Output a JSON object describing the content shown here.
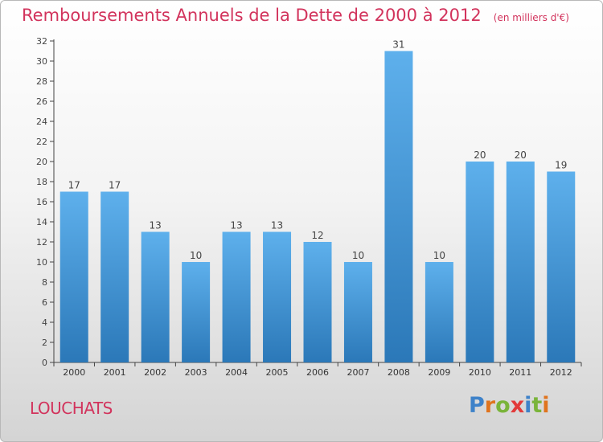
{
  "title": {
    "main": "Remboursements Annuels de la Dette de 2000 à 2012",
    "unit": "(en milliers d'€)"
  },
  "commune": "LOUCHATS",
  "logo": {
    "letters": [
      "P",
      "r",
      "o",
      "x",
      "i",
      "t",
      "i"
    ],
    "colors": [
      "#3e82c9",
      "#e0741e",
      "#7ab43a",
      "#e23a3a",
      "#3e82c9",
      "#7ab43a",
      "#e0741e"
    ]
  },
  "colors": {
    "title": "#d2335c",
    "bar_top": "#5eb0ec",
    "bar_bottom": "#2b78b8",
    "axis": "#444444",
    "grid": "#dddddd"
  },
  "chart_data": {
    "type": "bar",
    "title": "Remboursements Annuels de la Dette de 2000 à 2012",
    "subtitle": "(en milliers d'€)",
    "categories": [
      "2000",
      "2001",
      "2002",
      "2003",
      "2004",
      "2005",
      "2006",
      "2007",
      "2008",
      "2009",
      "2010",
      "2011",
      "2012"
    ],
    "values": [
      17,
      17,
      13,
      10,
      13,
      13,
      12,
      10,
      31,
      10,
      20,
      20,
      19
    ],
    "ylim": [
      0,
      32
    ],
    "yticks": [
      0,
      2,
      4,
      6,
      8,
      10,
      12,
      14,
      16,
      18,
      20,
      22,
      24,
      26,
      28,
      30,
      32
    ],
    "grid": false,
    "data_labels": true
  }
}
